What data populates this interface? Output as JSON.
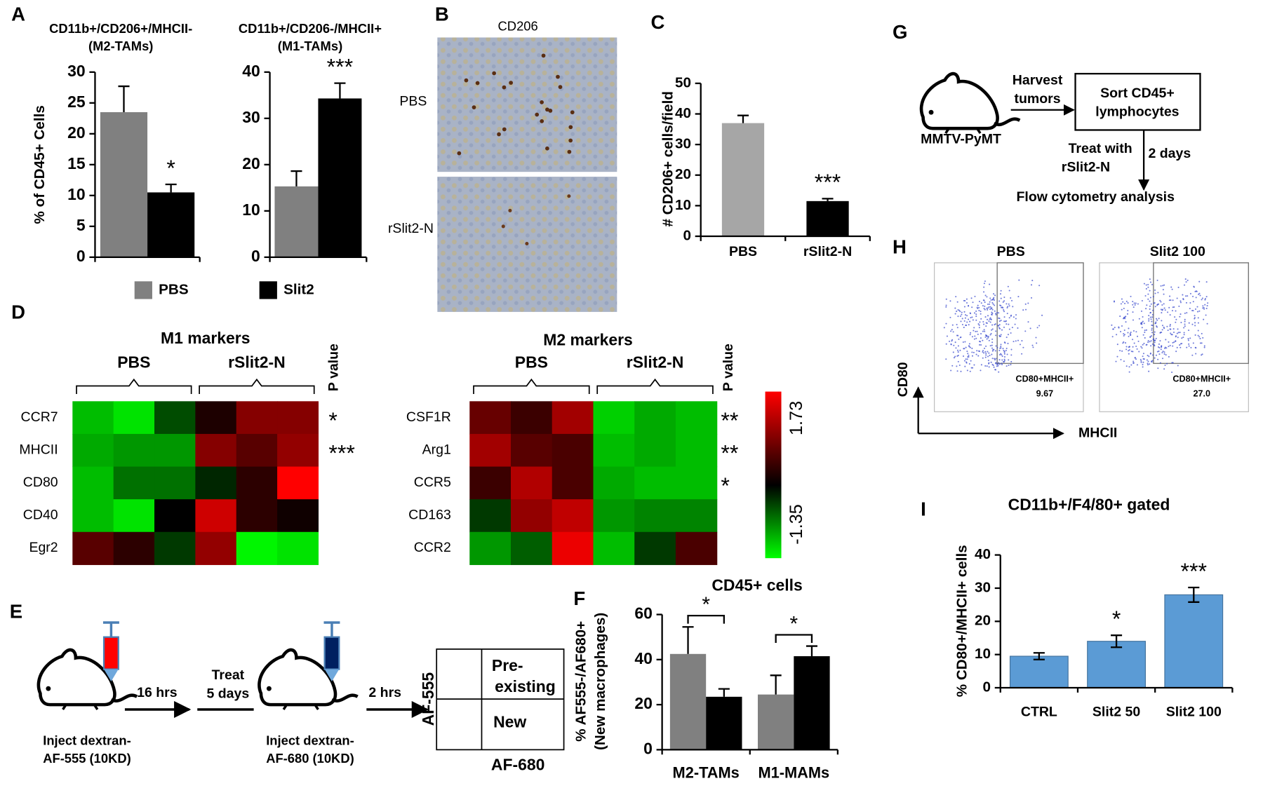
{
  "chart_data": [
    {
      "type": "bar",
      "panel_label": "A",
      "title": [
        "CD11b+/CD206+/MHCII-",
        "(M2-TAMs)"
      ],
      "ylabel": [
        "% of CD45+ Cells"
      ],
      "categories": [
        null
      ],
      "ylim": [
        0,
        30
      ],
      "yticks": [
        0,
        5,
        10,
        15,
        20,
        25,
        30
      ],
      "error_bars": "upper",
      "series": [
        {
          "name": "PBS",
          "color": "#808080",
          "values": [
            23.5
          ],
          "errors": [
            4.2
          ]
        },
        {
          "name": "Slit2",
          "color": "#000000",
          "values": [
            10.5
          ],
          "errors": [
            1.3
          ],
          "annotations": [
            "*"
          ]
        }
      ]
    },
    {
      "type": "bar",
      "title": [
        "CD11b+/CD206-/MHCII+",
        "(M1-TAMs)"
      ],
      "categories": [
        null
      ],
      "ylim": [
        0,
        40
      ],
      "yticks": [
        0,
        10,
        20,
        30,
        40
      ],
      "error_bars": "upper",
      "series": [
        {
          "color": "#808080",
          "values": [
            15.3
          ],
          "errors": [
            3.3
          ]
        },
        {
          "color": "#000000",
          "values": [
            34.3
          ],
          "errors": [
            3.3
          ],
          "annotations": [
            "***"
          ]
        }
      ]
    },
    {
      "type": "bar",
      "panel_label": "C",
      "ylabel": [
        "# CD206+ cells/field"
      ],
      "categories": [
        "PBS",
        "rSlit2-N"
      ],
      "ylim": [
        0,
        50
      ],
      "yticks": [
        0,
        10,
        20,
        30,
        40,
        50
      ],
      "error_bars": "upper",
      "series": [
        {
          "colors": [
            "#a6a6a6",
            "#000000"
          ],
          "values": [
            37,
            11.5
          ],
          "errors": [
            2.5,
            0.8
          ],
          "annotations": [
            null,
            "***"
          ]
        }
      ]
    },
    {
      "type": "bar",
      "panel_label": "F",
      "title": [
        "CD45+ cells"
      ],
      "ylabel": [
        "% AF555-/AF680+",
        "(New macrophages)"
      ],
      "categories": [
        "M2-TAMs",
        "M1-MAMs"
      ],
      "ylim": [
        0,
        60
      ],
      "yticks": [
        0,
        20,
        40,
        60
      ],
      "error_bars": "upper",
      "comparisons": [
        "*",
        "*"
      ],
      "series": [
        {
          "color": "#808080",
          "values": [
            42.5,
            24.5
          ],
          "errors": [
            12,
            8.5
          ]
        },
        {
          "color": "#000000",
          "values": [
            23.5,
            41.5
          ],
          "errors": [
            3.5,
            4.5
          ]
        }
      ]
    },
    {
      "type": "bar",
      "panel_label": "I",
      "title": [
        "CD11b+/F4/80+ gated"
      ],
      "ylabel": [
        "% CD80+/MHCII+ cells"
      ],
      "categories": [
        "CTRL",
        "Slit2 50",
        "Slit2 100"
      ],
      "ylim": [
        0,
        40
      ],
      "yticks": [
        0,
        10,
        20,
        30,
        40
      ],
      "error_bars": "both",
      "series": [
        {
          "color": "#5b9bd5",
          "values": [
            9.5,
            14,
            28
          ],
          "errors": [
            1,
            1.8,
            2.2
          ],
          "annotations": [
            null,
            "*",
            "***"
          ]
        }
      ]
    },
    {
      "type": "heatmap",
      "panel_label": "D",
      "title": "M1 markers",
      "groups": [
        "PBS",
        "rSlit2-N"
      ],
      "pvalue_label": "P value",
      "rows": [
        "CCR7",
        "MHCII",
        "CD80",
        "CD40",
        "Egr2"
      ],
      "values": [
        [
          -1.0,
          -1.2,
          -0.4,
          0.2,
          0.9,
          0.9
        ],
        [
          -0.9,
          -0.8,
          -0.8,
          0.9,
          0.6,
          1.0
        ],
        [
          -1.0,
          -0.6,
          -0.6,
          -0.2,
          0.3,
          1.73
        ],
        [
          -1.0,
          -1.2,
          0.0,
          1.4,
          0.3,
          0.1
        ],
        [
          0.6,
          0.3,
          -0.3,
          1.0,
          -1.3,
          -1.2
        ]
      ],
      "significance": [
        "*",
        "***",
        null,
        null,
        null
      ]
    },
    {
      "type": "heatmap",
      "title": "M2 markers",
      "groups": [
        "PBS",
        "rSlit2-N"
      ],
      "pvalue_label": "P value",
      "rows": [
        "CSF1R",
        "Arg1",
        "CCR5",
        "CD163",
        "CCR2"
      ],
      "values": [
        [
          0.7,
          0.4,
          1.1,
          -1.1,
          -0.9,
          -1.0
        ],
        [
          1.1,
          0.6,
          0.5,
          -1.0,
          -0.9,
          -1.0
        ],
        [
          0.4,
          1.2,
          0.5,
          -0.9,
          -1.0,
          -1.0
        ],
        [
          -0.3,
          1.0,
          1.3,
          -0.8,
          -0.7,
          -0.7
        ],
        [
          -0.8,
          -0.5,
          1.6,
          -1.0,
          -0.3,
          0.5
        ]
      ],
      "significance": [
        "**",
        "**",
        "*",
        null,
        null
      ],
      "colorbar": {
        "min": -1.35,
        "max": 1.73,
        "low_color": "#00ff00",
        "mid_color": "#000000",
        "high_color": "#ff0000"
      }
    }
  ],
  "panels": {
    "B": {
      "label": "B",
      "title": "CD206",
      "rows": [
        "PBS",
        "rSlit2-N"
      ]
    },
    "E": {
      "label": "E",
      "step1": [
        "Inject dextran-",
        "AF-555  (10KD)"
      ],
      "wait1": "16 hrs",
      "treat": [
        "Treat",
        "5 days"
      ],
      "step2": [
        "Inject dextran-",
        "AF-680  (10KD)"
      ],
      "wait2": "2 hrs",
      "y_axis": "AF-555",
      "x_axis": "AF-680",
      "upper": [
        "Pre-",
        "existing"
      ],
      "lower": "New"
    },
    "G": {
      "label": "G",
      "mouse": "MMTV-PyMT",
      "harvest": [
        "Harvest",
        "tumors"
      ],
      "sort": [
        "Sort CD45+",
        "lymphocytes"
      ],
      "treat": [
        "Treat with",
        "rSlit2-N"
      ],
      "duration": "2 days",
      "analysis": "Flow cytometry analysis"
    },
    "H": {
      "label": "H",
      "plots": [
        {
          "title": "PBS",
          "gate": "CD80+MHCII+",
          "percent": "9.67"
        },
        {
          "title": "Slit2 100",
          "gate": "CD80+MHCII+",
          "percent": "27.0"
        }
      ],
      "y_axis": "CD80",
      "x_axis": "MHCII"
    }
  }
}
